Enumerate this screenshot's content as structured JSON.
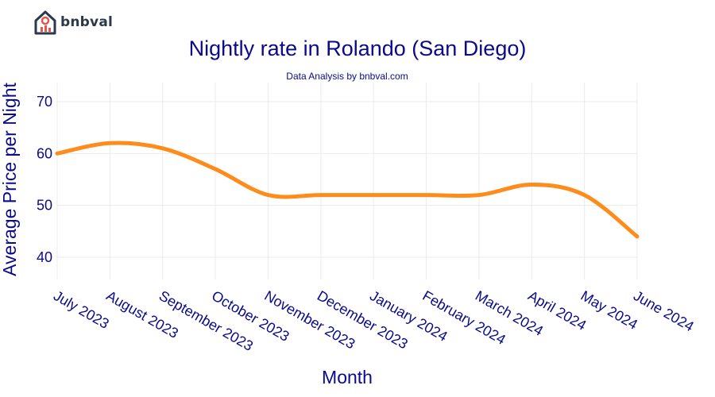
{
  "brand": {
    "name": "bnbval"
  },
  "chart_data": {
    "type": "line",
    "title": "Nightly rate in Rolando (San Diego)",
    "subtitle": "Data Analysis by bnbval.com",
    "xlabel": "Month",
    "ylabel": "Average Price per Night",
    "categories": [
      "July 2023",
      "August 2023",
      "September 2023",
      "October 2023",
      "November 2023",
      "December 2023",
      "January 2024",
      "February 2024",
      "March 2024",
      "April 2024",
      "May 2024",
      "June 2024"
    ],
    "series": [
      {
        "values": [
          60,
          62,
          61,
          57,
          52,
          52,
          52,
          52,
          52,
          54,
          52,
          44
        ]
      }
    ],
    "yticks": [
      40,
      50,
      60,
      70
    ],
    "ylim": [
      35,
      74
    ],
    "grid": true,
    "line_color": "#ff8c1a"
  }
}
